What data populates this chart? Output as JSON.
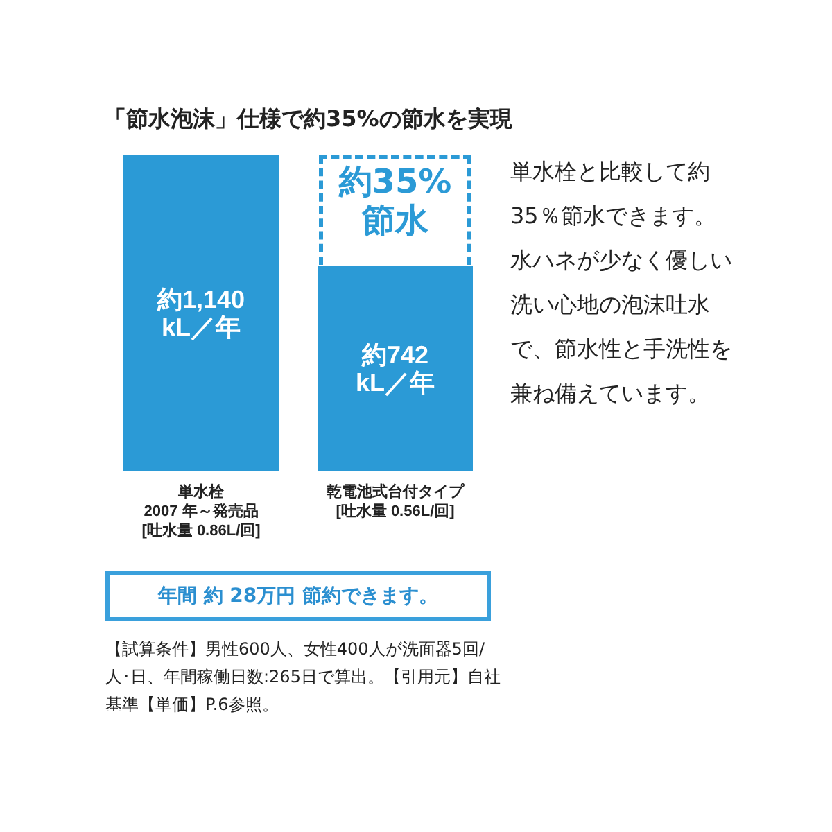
{
  "chart_data": {
    "type": "bar",
    "title": "「節水泡沫」仕様で約35%の節水を実現",
    "categories": [
      "単水栓\n2007 年～発売品\n[吐水量 0.86L/回]",
      "乾電池式台付タイプ\n[吐水量 0.56L/回]"
    ],
    "values": [
      1140,
      742
    ],
    "color": "#2b9ad6",
    "value_labels": [
      "約1,140\nkL／年",
      "約742\nkL／年"
    ],
    "annotations": [
      "約35%\n節水",
      "単水栓と比較して約35％節水できます。水ハネが少なく優しい洗い心地の泡沫吐水で、節水性と手洗性を兼ね備えています。",
      "年間 約 28万円 節約できます。",
      "【試算条件】男性600人、女性400人が洗面器5回/人･日、年間稼働日数:265日で算出。【引用元】自社基準【単価】P.6参照。"
    ]
  }
}
